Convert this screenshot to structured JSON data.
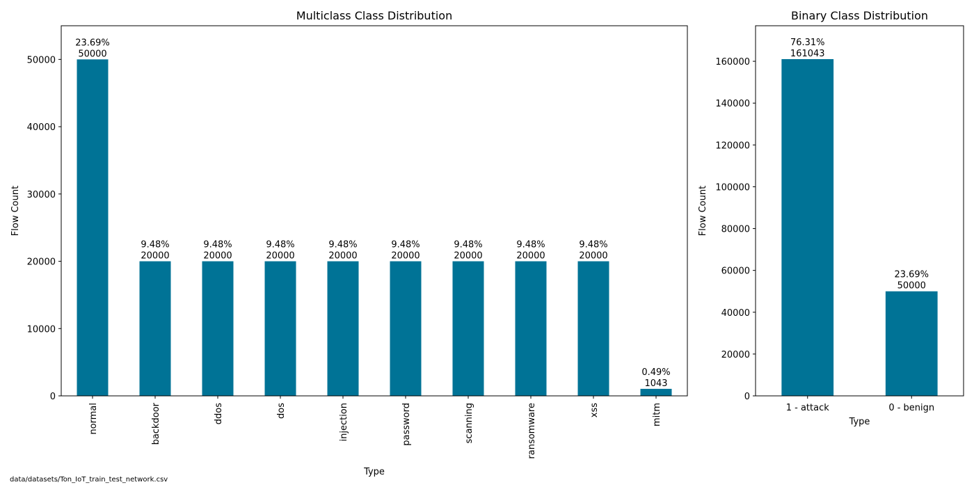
{
  "footnote": "data/datasets/Ton_IoT_train_test_network.csv",
  "bar_color": "#007396",
  "chart_data": [
    {
      "type": "bar",
      "title": "Multiclass Class Distribution",
      "xlabel": "Type",
      "ylabel": "Flow Count",
      "ylim": [
        0,
        55000
      ],
      "yticks": [
        0,
        10000,
        20000,
        30000,
        40000,
        50000
      ],
      "categories": [
        "normal",
        "backdoor",
        "ddos",
        "dos",
        "injection",
        "password",
        "scanning",
        "ransomware",
        "xss",
        "mitm"
      ],
      "values": [
        50000,
        20000,
        20000,
        20000,
        20000,
        20000,
        20000,
        20000,
        20000,
        1043
      ],
      "percent_labels": [
        "23.69%",
        "9.48%",
        "9.48%",
        "9.48%",
        "9.48%",
        "9.48%",
        "9.48%",
        "9.48%",
        "9.48%",
        "0.49%"
      ],
      "tick_rotation": "vertical",
      "grid": false,
      "legend": "none"
    },
    {
      "type": "bar",
      "title": "Binary Class Distribution",
      "xlabel": "Type",
      "ylabel": "Flow Count",
      "ylim": [
        0,
        177000
      ],
      "yticks": [
        0,
        20000,
        40000,
        60000,
        80000,
        100000,
        120000,
        140000,
        160000
      ],
      "categories": [
        "1 - attack",
        "0 - benign"
      ],
      "values": [
        161043,
        50000
      ],
      "percent_labels": [
        "76.31%",
        "23.69%"
      ],
      "tick_rotation": "horizontal",
      "grid": false,
      "legend": "none"
    }
  ]
}
